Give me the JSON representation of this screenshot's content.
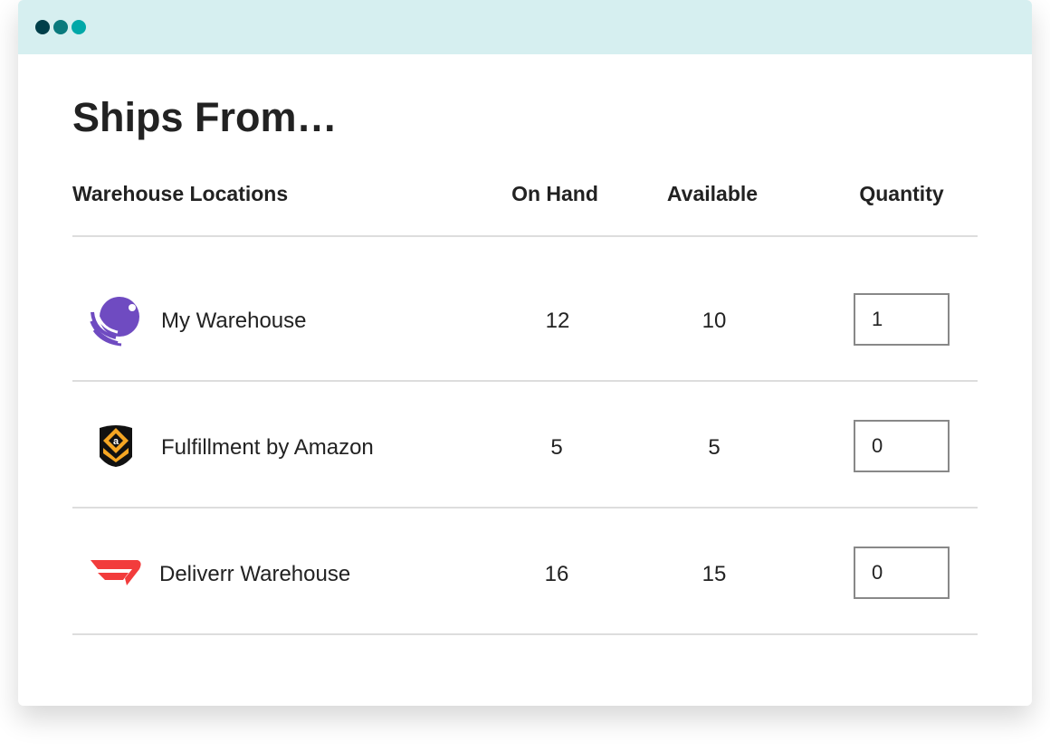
{
  "window": {
    "controls": [
      {
        "color": "#003f4a"
      },
      {
        "color": "#0a7a7d"
      },
      {
        "color": "#00a8a8"
      }
    ]
  },
  "title": "Ships From…",
  "columns": {
    "location": "Warehouse Locations",
    "on_hand": "On Hand",
    "available": "Available",
    "quantity": "Quantity"
  },
  "rows": [
    {
      "name": "My Warehouse",
      "icon": "octopus-logo-icon",
      "on_hand": "12",
      "available": "10",
      "quantity": "1"
    },
    {
      "name": "Fulfillment by Amazon",
      "icon": "amazon-fba-logo-icon",
      "on_hand": "5",
      "available": "5",
      "quantity": "0"
    },
    {
      "name": "Deliverr Warehouse",
      "icon": "deliverr-logo-icon",
      "on_hand": "16",
      "available": "15",
      "quantity": "0"
    }
  ]
}
